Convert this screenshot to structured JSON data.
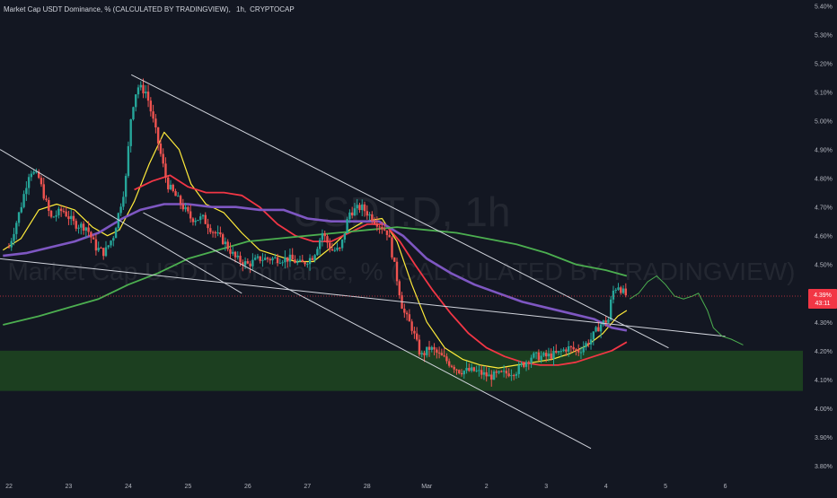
{
  "header": {
    "title": "Market Cap USDT Dominance, % (CALCULATED BY TRADINGVIEW)",
    "interval": "1h",
    "exchange": "CRYPTOCAP"
  },
  "watermark": {
    "symbol": "USDT.D, 1h",
    "description": "Market Cap USDT Dominance, % (CALCULATED BY TRADINGVIEW)"
  },
  "price_badge": {
    "price": "4.39%",
    "countdown": "43:11"
  },
  "colors": {
    "background": "#131722",
    "up": "#26a69a",
    "down": "#ef5350",
    "ma_fast": "#ffeb3b",
    "ma_mid": "#f23645",
    "ma_slow": "#7e57c2",
    "ma_long": "#4caf50",
    "trendline": "#d1d4dc",
    "zone": "#1e4620",
    "projection": "#4caf50",
    "badge": "#f23645"
  },
  "chart_data": {
    "type": "candlestick",
    "title": "Market Cap USDT Dominance, % (CALCULATED BY TRADINGVIEW)",
    "xlabel": "",
    "ylabel": "",
    "x_ticks": [
      "22",
      "23",
      "24",
      "25",
      "26",
      "27",
      "28",
      "Mar",
      "2",
      "3",
      "4",
      "5",
      "6"
    ],
    "y_ticks": [
      "5.40%",
      "5.30%",
      "5.20%",
      "5.10%",
      "5.00%",
      "4.90%",
      "4.80%",
      "4.70%",
      "4.60%",
      "4.50%",
      "4.40%",
      "4.30%",
      "4.20%",
      "4.10%",
      "4.00%",
      "3.90%",
      "3.80%"
    ],
    "ylim": [
      3.75,
      5.42
    ],
    "xlim": [
      21.85,
      35.3
    ],
    "grid": false,
    "last_price": 4.39,
    "price_path": [
      [
        22.0,
        4.56
      ],
      [
        22.2,
        4.7
      ],
      [
        22.35,
        4.83
      ],
      [
        22.5,
        4.8
      ],
      [
        22.7,
        4.66
      ],
      [
        22.9,
        4.69
      ],
      [
        23.1,
        4.64
      ],
      [
        23.3,
        4.63
      ],
      [
        23.45,
        4.56
      ],
      [
        23.6,
        4.54
      ],
      [
        23.75,
        4.6
      ],
      [
        23.95,
        4.78
      ],
      [
        24.05,
        5.03
      ],
      [
        24.15,
        5.12
      ],
      [
        24.3,
        5.1
      ],
      [
        24.45,
        4.97
      ],
      [
        24.65,
        4.78
      ],
      [
        24.85,
        4.72
      ],
      [
        25.05,
        4.66
      ],
      [
        25.25,
        4.66
      ],
      [
        25.4,
        4.62
      ],
      [
        25.6,
        4.58
      ],
      [
        25.8,
        4.52
      ],
      [
        26.0,
        4.5
      ],
      [
        26.2,
        4.52
      ],
      [
        26.45,
        4.52
      ],
      [
        26.7,
        4.52
      ],
      [
        26.9,
        4.5
      ],
      [
        27.1,
        4.53
      ],
      [
        27.25,
        4.61
      ],
      [
        27.4,
        4.55
      ],
      [
        27.55,
        4.55
      ],
      [
        27.7,
        4.68
      ],
      [
        27.9,
        4.7
      ],
      [
        28.1,
        4.66
      ],
      [
        28.35,
        4.61
      ],
      [
        28.5,
        4.45
      ],
      [
        28.6,
        4.34
      ],
      [
        28.75,
        4.28
      ],
      [
        28.9,
        4.18
      ],
      [
        29.05,
        4.21
      ],
      [
        29.3,
        4.17
      ],
      [
        29.55,
        4.13
      ],
      [
        29.8,
        4.13
      ],
      [
        30.05,
        4.11
      ],
      [
        30.3,
        4.12
      ],
      [
        30.5,
        4.13
      ],
      [
        30.75,
        4.18
      ],
      [
        31.0,
        4.18
      ],
      [
        31.2,
        4.19
      ],
      [
        31.35,
        4.21
      ],
      [
        31.55,
        4.2
      ],
      [
        31.75,
        4.24
      ],
      [
        31.9,
        4.29
      ],
      [
        32.05,
        4.31
      ],
      [
        32.1,
        4.4
      ],
      [
        32.2,
        4.43
      ],
      [
        32.3,
        4.4
      ],
      [
        32.35,
        4.39
      ]
    ],
    "series": [
      {
        "name": "",
        "color": "#ffeb3b",
        "points": [
          [
            21.9,
            4.55
          ],
          [
            22.2,
            4.59
          ],
          [
            22.5,
            4.69
          ],
          [
            22.8,
            4.71
          ],
          [
            23.1,
            4.69
          ],
          [
            23.4,
            4.63
          ],
          [
            23.65,
            4.6
          ],
          [
            23.85,
            4.62
          ],
          [
            24.1,
            4.72
          ],
          [
            24.35,
            4.85
          ],
          [
            24.6,
            4.96
          ],
          [
            24.85,
            4.9
          ],
          [
            25.05,
            4.78
          ],
          [
            25.3,
            4.71
          ],
          [
            25.6,
            4.68
          ],
          [
            25.9,
            4.61
          ],
          [
            26.2,
            4.55
          ],
          [
            26.5,
            4.53
          ],
          [
            26.8,
            4.51
          ],
          [
            27.1,
            4.51
          ],
          [
            27.4,
            4.56
          ],
          [
            27.7,
            4.62
          ],
          [
            27.95,
            4.65
          ],
          [
            28.25,
            4.66
          ],
          [
            28.5,
            4.58
          ],
          [
            28.75,
            4.43
          ],
          [
            29.0,
            4.3
          ],
          [
            29.3,
            4.21
          ],
          [
            29.6,
            4.17
          ],
          [
            29.9,
            4.15
          ],
          [
            30.2,
            4.14
          ],
          [
            30.5,
            4.15
          ],
          [
            30.8,
            4.16
          ],
          [
            31.1,
            4.17
          ],
          [
            31.4,
            4.19
          ],
          [
            31.7,
            4.22
          ],
          [
            31.95,
            4.26
          ],
          [
            32.2,
            4.32
          ],
          [
            32.35,
            4.34
          ]
        ]
      },
      {
        "name": "",
        "color": "#f23645",
        "points": [
          [
            24.1,
            4.76
          ],
          [
            24.4,
            4.79
          ],
          [
            24.7,
            4.81
          ],
          [
            25.0,
            4.77
          ],
          [
            25.3,
            4.75
          ],
          [
            25.6,
            4.75
          ],
          [
            25.9,
            4.74
          ],
          [
            26.2,
            4.7
          ],
          [
            26.5,
            4.64
          ],
          [
            26.8,
            4.6
          ],
          [
            27.1,
            4.58
          ],
          [
            27.4,
            4.58
          ],
          [
            27.7,
            4.61
          ],
          [
            28.0,
            4.64
          ],
          [
            28.3,
            4.64
          ],
          [
            28.55,
            4.58
          ],
          [
            28.8,
            4.5
          ],
          [
            29.1,
            4.41
          ],
          [
            29.4,
            4.33
          ],
          [
            29.7,
            4.26
          ],
          [
            30.0,
            4.21
          ],
          [
            30.3,
            4.18
          ],
          [
            30.6,
            4.16
          ],
          [
            30.9,
            4.15
          ],
          [
            31.2,
            4.15
          ],
          [
            31.5,
            4.16
          ],
          [
            31.8,
            4.18
          ],
          [
            32.1,
            4.2
          ],
          [
            32.35,
            4.23
          ]
        ]
      },
      {
        "name": "",
        "color": "#7e57c2",
        "points": [
          [
            21.9,
            4.53
          ],
          [
            22.3,
            4.54
          ],
          [
            22.7,
            4.56
          ],
          [
            23.1,
            4.58
          ],
          [
            23.5,
            4.61
          ],
          [
            23.9,
            4.66
          ],
          [
            24.2,
            4.69
          ],
          [
            24.6,
            4.71
          ],
          [
            25.0,
            4.71
          ],
          [
            25.4,
            4.7
          ],
          [
            25.8,
            4.7
          ],
          [
            26.2,
            4.69
          ],
          [
            26.6,
            4.69
          ],
          [
            27.0,
            4.66
          ],
          [
            27.4,
            4.65
          ],
          [
            27.8,
            4.65
          ],
          [
            28.2,
            4.65
          ],
          [
            28.6,
            4.6
          ],
          [
            29.0,
            4.52
          ],
          [
            29.4,
            4.47
          ],
          [
            29.8,
            4.43
          ],
          [
            30.2,
            4.4
          ],
          [
            30.6,
            4.37
          ],
          [
            31.0,
            4.35
          ],
          [
            31.4,
            4.33
          ],
          [
            31.8,
            4.31
          ],
          [
            32.1,
            4.28
          ],
          [
            32.35,
            4.27
          ]
        ]
      },
      {
        "name": "",
        "color": "#4caf50",
        "points": [
          [
            21.9,
            4.29
          ],
          [
            22.5,
            4.32
          ],
          [
            23.0,
            4.35
          ],
          [
            23.5,
            4.38
          ],
          [
            24.0,
            4.43
          ],
          [
            24.5,
            4.47
          ],
          [
            25.0,
            4.52
          ],
          [
            25.5,
            4.55
          ],
          [
            26.0,
            4.58
          ],
          [
            26.5,
            4.59
          ],
          [
            27.0,
            4.6
          ],
          [
            27.5,
            4.61
          ],
          [
            28.0,
            4.62
          ],
          [
            28.5,
            4.63
          ],
          [
            29.0,
            4.62
          ],
          [
            29.5,
            4.61
          ],
          [
            30.0,
            4.59
          ],
          [
            30.5,
            4.57
          ],
          [
            31.0,
            4.54
          ],
          [
            31.5,
            4.5
          ],
          [
            32.0,
            4.48
          ],
          [
            32.35,
            4.46
          ]
        ]
      }
    ],
    "trendlines": [
      [
        [
          21.85,
          4.9
        ],
        [
          25.9,
          4.4
        ]
      ],
      [
        [
          24.05,
          5.16
        ],
        [
          33.05,
          4.21
        ]
      ],
      [
        [
          24.25,
          4.68
        ],
        [
          31.75,
          3.86
        ]
      ],
      [
        [
          21.85,
          4.52
        ],
        [
          34.0,
          4.25
        ]
      ]
    ],
    "zone": {
      "y_top": 4.2,
      "y_bottom": 4.06
    },
    "projection": [
      [
        32.4,
        4.38
      ],
      [
        32.55,
        4.4
      ],
      [
        32.7,
        4.44
      ],
      [
        32.85,
        4.46
      ],
      [
        33.0,
        4.43
      ],
      [
        33.15,
        4.39
      ],
      [
        33.3,
        4.38
      ],
      [
        33.45,
        4.39
      ],
      [
        33.55,
        4.4
      ],
      [
        33.7,
        4.34
      ],
      [
        33.8,
        4.28
      ],
      [
        33.95,
        4.25
      ],
      [
        34.1,
        4.24
      ],
      [
        34.3,
        4.22
      ]
    ]
  }
}
